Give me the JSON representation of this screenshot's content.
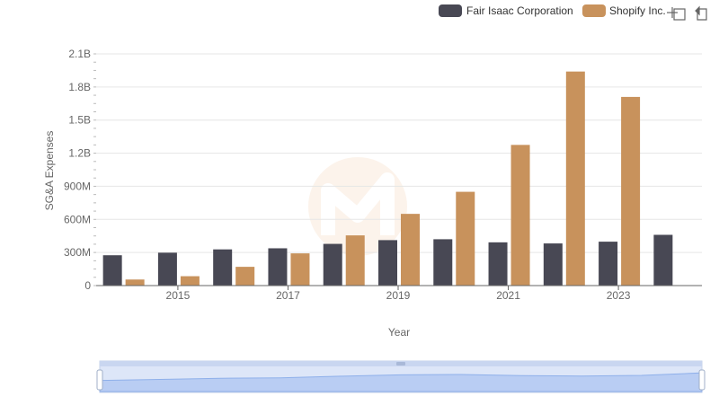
{
  "chart_data": {
    "type": "bar",
    "title": "",
    "xlabel": "Year",
    "ylabel": "SG&A Expenses",
    "ylim": [
      0,
      2100000000
    ],
    "y_ticks": [
      {
        "value": 0,
        "label": "0"
      },
      {
        "value": 300000000,
        "label": "300M"
      },
      {
        "value": 600000000,
        "label": "600M"
      },
      {
        "value": 900000000,
        "label": "900M"
      },
      {
        "value": 1200000000,
        "label": "1.2B"
      },
      {
        "value": 1500000000,
        "label": "1.5B"
      },
      {
        "value": 1800000000,
        "label": "1.8B"
      },
      {
        "value": 2100000000,
        "label": "2.1B"
      }
    ],
    "categories": [
      "2014",
      "2015",
      "2016",
      "2017",
      "2018",
      "2019",
      "2020",
      "2021",
      "2022",
      "2023",
      "2024"
    ],
    "x_tick_labels": [
      "2015",
      "2017",
      "2019",
      "2021",
      "2023"
    ],
    "series": [
      {
        "name": "Fair Isaac Corporation",
        "color": "#484854",
        "values": [
          275000000,
          298000000,
          328000000,
          338000000,
          378000000,
          412000000,
          420000000,
          392000000,
          382000000,
          398000000,
          460000000
        ]
      },
      {
        "name": "Shopify Inc.",
        "color": "#c8925c",
        "values": [
          55000000,
          85000000,
          170000000,
          292000000,
          455000000,
          650000000,
          850000000,
          1275000000,
          1940000000,
          1710000000,
          null
        ]
      }
    ],
    "legend_position": "top-right",
    "grid": true
  }
}
